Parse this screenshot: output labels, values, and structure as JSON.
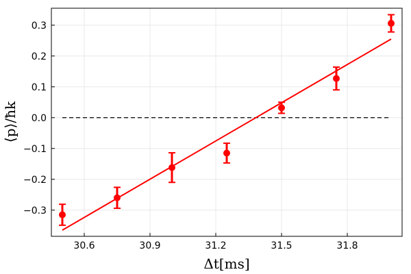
{
  "chart_data": {
    "type": "scatter",
    "xlabel": "Δt[ms]",
    "ylabel": "⟨p⟩/ħk",
    "xlim": [
      30.45,
      32.05
    ],
    "ylim": [
      -0.385,
      0.355
    ],
    "xticks": [
      "30.6",
      "30.9",
      "31.2",
      "31.5",
      "31.8"
    ],
    "xtick_values": [
      30.6,
      30.9,
      31.2,
      31.5,
      31.8
    ],
    "yticks": [
      "0.3",
      "0.2",
      "0.1",
      "0.0",
      "−0.1",
      "−0.2",
      "−0.3"
    ],
    "ytick_values": [
      0.3,
      0.2,
      0.1,
      0.0,
      -0.1,
      -0.2,
      -0.3
    ],
    "grid": true,
    "series": [
      {
        "kind": "points_with_errorbars",
        "x": [
          30.5,
          30.75,
          31.0,
          31.25,
          31.5,
          31.75,
          32.0
        ],
        "y": [
          -0.315,
          -0.26,
          -0.162,
          -0.115,
          0.032,
          0.127,
          0.306
        ],
        "yerr": [
          0.034,
          0.034,
          0.048,
          0.032,
          0.018,
          0.037,
          0.028
        ]
      },
      {
        "kind": "fit_line",
        "x": [
          30.5,
          32.0
        ],
        "y": [
          -0.365,
          0.255
        ]
      },
      {
        "kind": "reference_line",
        "y": 0.0,
        "x": [
          30.5,
          32.0
        ],
        "style": "dashed"
      }
    ],
    "colors": {
      "data": "#ff0000",
      "fit": "#ff0000",
      "reference": "#000000",
      "grid": "#e8e8e8",
      "frame": "#000000"
    }
  }
}
